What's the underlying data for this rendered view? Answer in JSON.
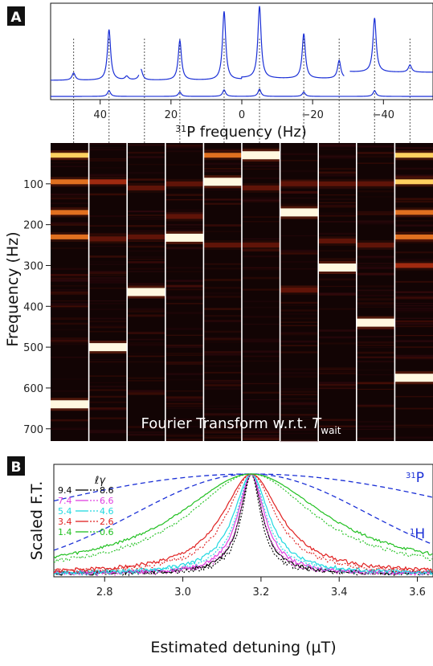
{
  "panels": {
    "a_label": "A",
    "b_label": "B"
  },
  "chart_data": [
    {
      "type": "line",
      "panel": "A-top",
      "xlabel_sup": "31",
      "xlabel": "P frequency (Hz)",
      "xlim": [
        54,
        -54
      ],
      "xticks": [
        40,
        20,
        0,
        -20,
        -40
      ],
      "dashed_guides_x": [
        47.5,
        37.5,
        27.5,
        17.5,
        5,
        -5,
        -17.5,
        -27.5,
        -37.5,
        -47.5
      ],
      "spectrum_raised": {
        "baseline_segments": [
          [
            54,
            29
          ],
          [
            28.5,
            -29
          ],
          [
            -30.5,
            -54
          ]
        ],
        "peaks": [
          {
            "x": 47.5,
            "h": 0.1
          },
          {
            "x": 37.5,
            "h": 0.7
          },
          {
            "x": 32.5,
            "h": 0.05
          },
          {
            "x": 28.5,
            "h": 0.15
          },
          {
            "x": 17.5,
            "h": 0.55
          },
          {
            "x": 5,
            "h": 0.95
          },
          {
            "x": -5,
            "h": 1.0
          },
          {
            "x": -17.5,
            "h": 0.62
          },
          {
            "x": -27.5,
            "h": 0.25
          },
          {
            "x": -37.5,
            "h": 0.75
          },
          {
            "x": -47.5,
            "h": 0.1
          }
        ]
      },
      "spectrum_lower": {
        "peaks": [
          {
            "x": 37.5,
            "h": 0.08
          },
          {
            "x": 17.5,
            "h": 0.06
          },
          {
            "x": 5,
            "h": 0.09
          },
          {
            "x": -5,
            "h": 0.1
          },
          {
            "x": -17.5,
            "h": 0.06
          },
          {
            "x": -37.5,
            "h": 0.08
          }
        ]
      },
      "color": "#1a2fd6"
    },
    {
      "type": "heatmap",
      "panel": "A-bottom",
      "ylabel": "Frequency (Hz)",
      "ylim": [
        0,
        730
      ],
      "yticks": [
        100,
        200,
        300,
        400,
        500,
        600,
        700
      ],
      "annotation": "Fourier Transform w.r.t. ",
      "annotation_var": "T",
      "annotation_sub": "wait",
      "columns": [
        {
          "lines": [
            {
              "y": 30,
              "i": 0.8
            },
            {
              "y": 95,
              "i": 0.7
            },
            {
              "y": 170,
              "i": 0.5
            },
            {
              "y": 230,
              "i": 0.5
            },
            {
              "y": 640,
              "i": 1.0
            }
          ]
        },
        {
          "lines": [
            {
              "y": 500,
              "i": 1.0
            },
            {
              "y": 95,
              "i": 0.35
            },
            {
              "y": 235,
              "i": 0.3
            }
          ]
        },
        {
          "lines": [
            {
              "y": 365,
              "i": 1.0
            },
            {
              "y": 110,
              "i": 0.25
            },
            {
              "y": 230,
              "i": 0.3
            }
          ]
        },
        {
          "lines": [
            {
              "y": 232,
              "i": 1.0
            },
            {
              "y": 100,
              "i": 0.3
            },
            {
              "y": 180,
              "i": 0.3
            }
          ]
        },
        {
          "lines": [
            {
              "y": 95,
              "i": 1.0
            },
            {
              "y": 250,
              "i": 0.25
            },
            {
              "y": 30,
              "i": 0.5
            }
          ]
        },
        {
          "lines": [
            {
              "y": 30,
              "i": 1.0
            },
            {
              "y": 110,
              "i": 0.3
            },
            {
              "y": 250,
              "i": 0.3
            }
          ]
        },
        {
          "lines": [
            {
              "y": 170,
              "i": 1.0
            },
            {
              "y": 100,
              "i": 0.3
            },
            {
              "y": 360,
              "i": 0.25
            }
          ]
        },
        {
          "lines": [
            {
              "y": 305,
              "i": 1.0
            },
            {
              "y": 100,
              "i": 0.3
            },
            {
              "y": 240,
              "i": 0.3
            }
          ]
        },
        {
          "lines": [
            {
              "y": 440,
              "i": 1.0
            },
            {
              "y": 100,
              "i": 0.3
            },
            {
              "y": 250,
              "i": 0.3
            }
          ]
        },
        {
          "lines": [
            {
              "y": 30,
              "i": 0.85
            },
            {
              "y": 95,
              "i": 0.75
            },
            {
              "y": 170,
              "i": 0.55
            },
            {
              "y": 230,
              "i": 0.55
            },
            {
              "y": 300,
              "i": 0.35
            },
            {
              "y": 575,
              "i": 1.0
            }
          ]
        }
      ]
    },
    {
      "type": "line",
      "panel": "B",
      "xlabel": "Estimated detuning (μT)",
      "ylabel": "Scaled F.T.",
      "xlim": [
        2.67,
        3.64
      ],
      "xticks": [
        2.8,
        3.0,
        3.2,
        3.4,
        3.6
      ],
      "legend_title": "ℓγ",
      "center": 3.175,
      "series": [
        {
          "solid": "9.4",
          "dashed": "8.6",
          "color": "#000000",
          "width": 0.035
        },
        {
          "solid": "7.4",
          "dashed": "6.6",
          "color": "#e040e0",
          "width": 0.042
        },
        {
          "solid": "5.4",
          "dashed": "4.6",
          "color": "#20d8e0",
          "width": 0.055
        },
        {
          "solid": "3.4",
          "dashed": "2.6",
          "color": "#e02020",
          "width": 0.09
        },
        {
          "solid": "1.4",
          "dashed": "0.6",
          "color": "#20c020",
          "width": 0.23
        }
      ],
      "reference_curves": [
        {
          "label_sup": "31",
          "label": "P",
          "color": "#1a2fd6",
          "width": 0.9
        },
        {
          "label_sup": "1",
          "label": "H",
          "color": "#1a2fd6",
          "width": 0.42
        }
      ]
    }
  ]
}
